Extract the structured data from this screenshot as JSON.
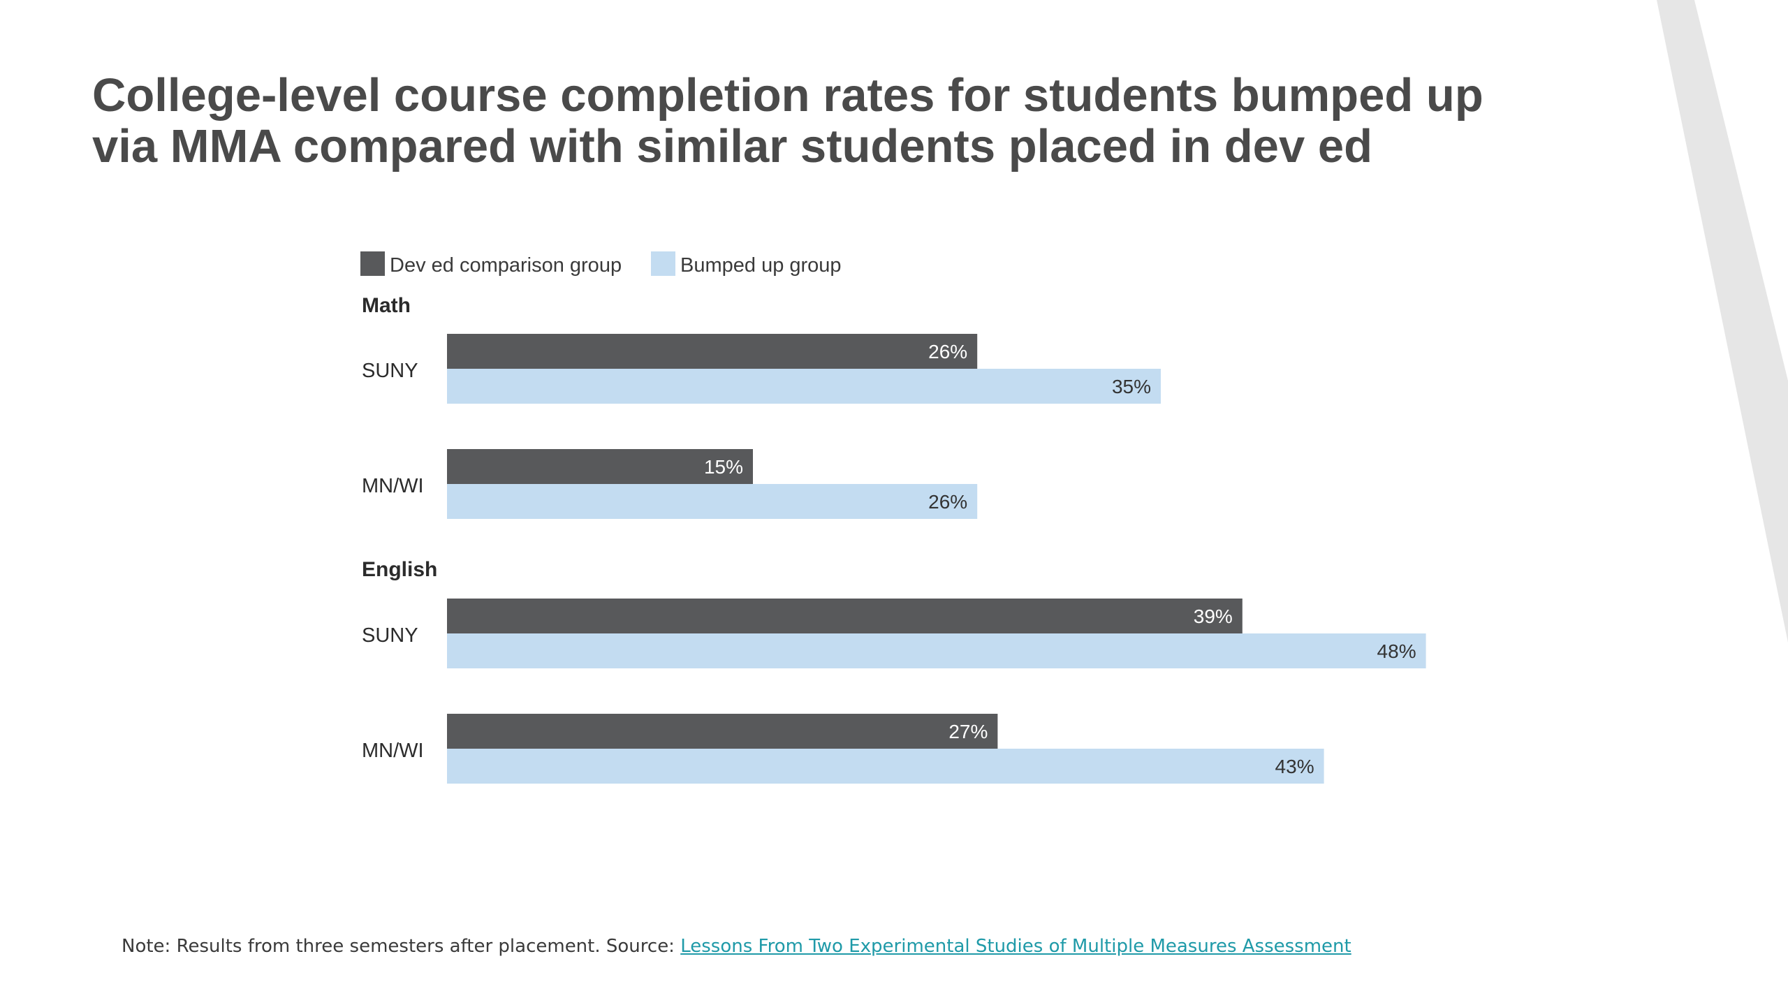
{
  "title": {
    "line1": "College-level course completion rates for students bumped up",
    "line2": "via MMA compared with similar students placed in dev ed"
  },
  "colors": {
    "dev_ed": "#58595b",
    "bumped_up": "#c3dcf1",
    "title": "#4a4a4a",
    "link": "#1f9aa8",
    "accent_stripe": "#e6e6e6"
  },
  "chart_data": {
    "type": "bar",
    "orientation": "horizontal",
    "legend": [
      {
        "name": "Dev ed comparison group",
        "color": "#58595b"
      },
      {
        "name": "Bumped up group",
        "color": "#c3dcf1"
      }
    ],
    "legend_placement": "top-left",
    "groups": [
      {
        "label": "Math",
        "categories": [
          "SUNY",
          "MN/WI"
        ],
        "series": [
          {
            "name": "Dev ed comparison group",
            "values": [
              26,
              15
            ],
            "labels": [
              "26%",
              "15%"
            ]
          },
          {
            "name": "Bumped up group",
            "values": [
              35,
              26
            ],
            "labels": [
              "35%",
              "26%"
            ]
          }
        ]
      },
      {
        "label": "English",
        "categories": [
          "SUNY",
          "MN/WI"
        ],
        "series": [
          {
            "name": "Dev ed comparison group",
            "values": [
              39,
              27
            ],
            "labels": [
              "39%",
              "27%"
            ]
          },
          {
            "name": "Bumped up group",
            "values": [
              48,
              43
            ],
            "labels": [
              "48%",
              "43%"
            ]
          }
        ]
      }
    ],
    "units": "%",
    "xlim": [
      0,
      48
    ],
    "grid": false
  },
  "footnote": {
    "text": "Note: Results from three semesters after placement. Source: ",
    "link_text": "Lessons From Two Experimental Studies of Multiple Measures Assessment"
  }
}
